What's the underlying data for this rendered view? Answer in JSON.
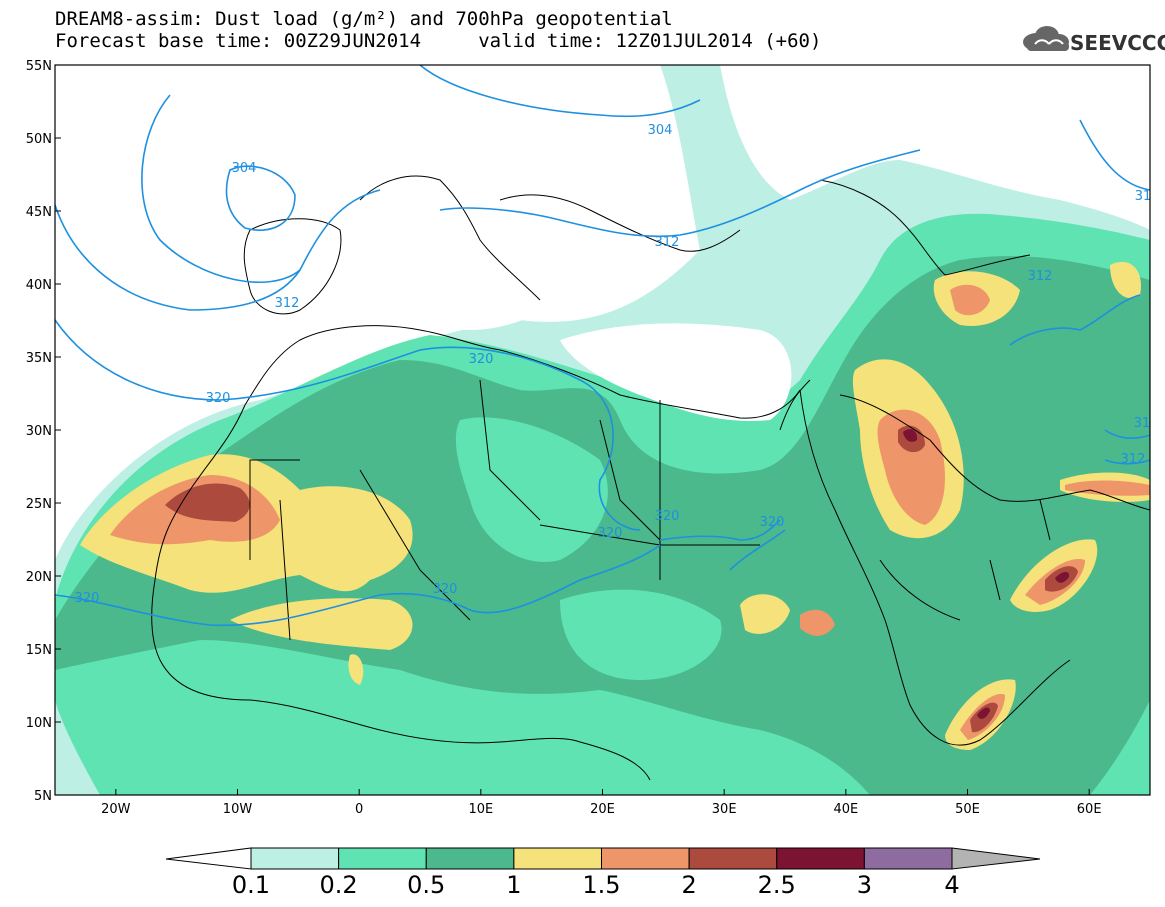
{
  "title": {
    "line1": "DREAM8-assim: Dust load (g/m²) and 700hPa geopotential",
    "line2": "Forecast base time: 00Z29JUN2014     valid time: 12Z01JUL2014 (+60)"
  },
  "logo": {
    "text": "SEEVCCC",
    "icon": "cloud-icon"
  },
  "axes": {
    "lat_labels": [
      "55N",
      "50N",
      "45N",
      "40N",
      "35N",
      "30N",
      "25N",
      "20N",
      "15N",
      "10N",
      "5N"
    ],
    "lon_labels": [
      "20W",
      "10W",
      "0",
      "10E",
      "20E",
      "30E",
      "40E",
      "50E",
      "60E"
    ],
    "lat_range": [
      5,
      55
    ],
    "lon_range": [
      -25,
      65
    ]
  },
  "contours": {
    "variable": "700hPa geopotential",
    "labels": [
      "304",
      "304",
      "312",
      "312",
      "320",
      "320",
      "320",
      "320",
      "320",
      "320",
      "312",
      "31",
      "31"
    ]
  },
  "colorbar": {
    "ticks": [
      "0.1",
      "0.2",
      "0.5",
      "1",
      "1.5",
      "2",
      "2.5",
      "3",
      "4"
    ],
    "colors": [
      "#bdefe4",
      "#5fe3b3",
      "#4bb98b",
      "#f5e27a",
      "#ee956a",
      "#ac4a3e",
      "#7c1332",
      "#8e6c9f",
      "#b3b3b3"
    ],
    "under_color": "#ffffff"
  }
}
